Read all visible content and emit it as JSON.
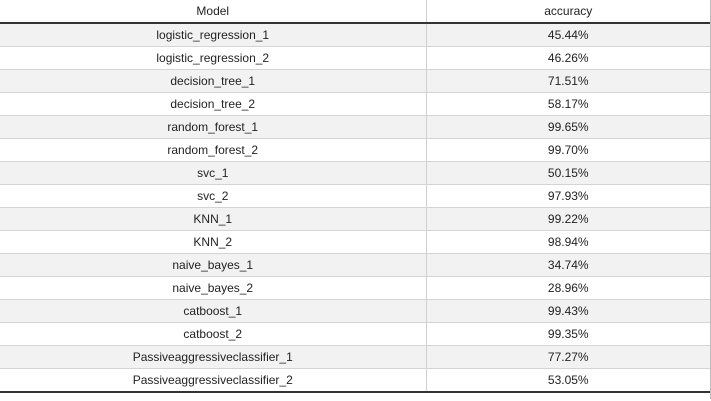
{
  "table": {
    "headers": {
      "model": "Model",
      "accuracy": "accuracy"
    },
    "rows": [
      {
        "model": "logistic_regression_1",
        "accuracy": "45.44%"
      },
      {
        "model": "logistic_regression_2",
        "accuracy": "46.26%"
      },
      {
        "model": "decision_tree_1",
        "accuracy": "71.51%"
      },
      {
        "model": "decision_tree_2",
        "accuracy": "58.17%"
      },
      {
        "model": "random_forest_1",
        "accuracy": "99.65%"
      },
      {
        "model": "random_forest_2",
        "accuracy": "99.70%"
      },
      {
        "model": "svc_1",
        "accuracy": "50.15%"
      },
      {
        "model": "svc_2",
        "accuracy": "97.93%"
      },
      {
        "model": "KNN_1",
        "accuracy": "99.22%"
      },
      {
        "model": "KNN_2",
        "accuracy": "98.94%"
      },
      {
        "model": "naive_bayes_1",
        "accuracy": "34.74%"
      },
      {
        "model": "naive_bayes_2",
        "accuracy": "28.96%"
      },
      {
        "model": "catboost_1",
        "accuracy": "99.43%"
      },
      {
        "model": "catboost_2",
        "accuracy": "99.35%"
      },
      {
        "model": "Passiveaggressiveclassifier_1",
        "accuracy": "77.27%"
      },
      {
        "model": "Passiveaggressiveclassifier_2",
        "accuracy": "53.05%"
      }
    ]
  }
}
